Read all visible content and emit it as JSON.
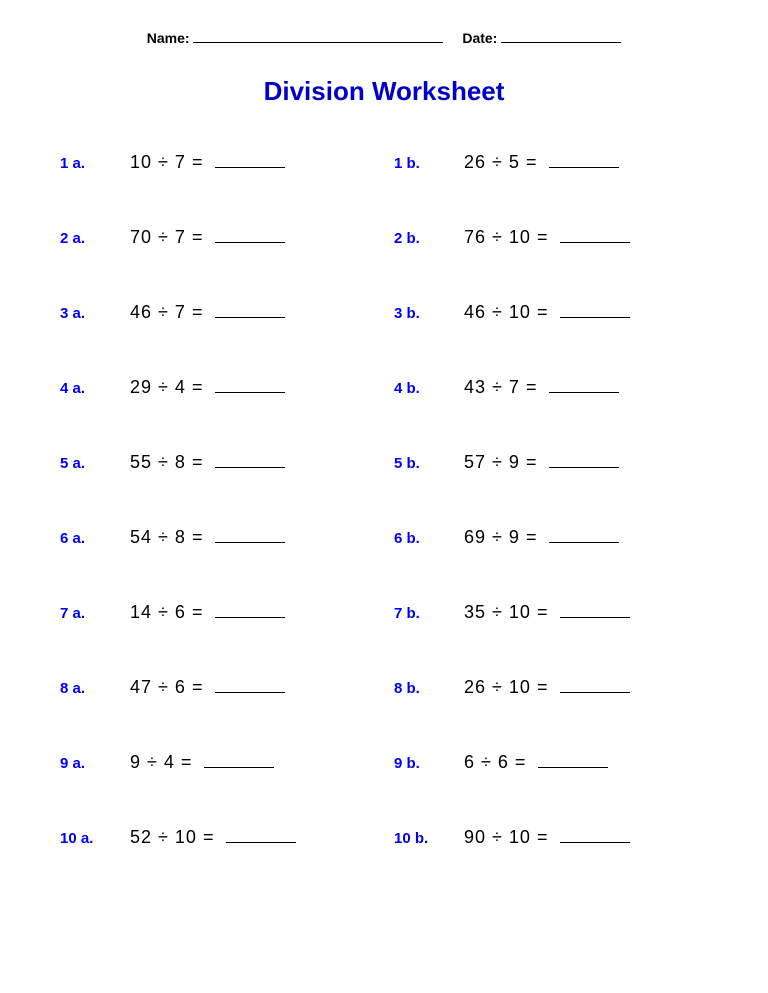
{
  "header": {
    "name_label": "Name:",
    "date_label": "Date:"
  },
  "title": {
    "text": "Division Worksheet",
    "color": "#0000cc"
  },
  "label_color": "#0000ee",
  "problems": [
    {
      "label": "1 a.",
      "dividend": 10,
      "divisor": 7
    },
    {
      "label": "1 b.",
      "dividend": 26,
      "divisor": 5
    },
    {
      "label": "2 a.",
      "dividend": 70,
      "divisor": 7
    },
    {
      "label": "2 b.",
      "dividend": 76,
      "divisor": 10
    },
    {
      "label": "3 a.",
      "dividend": 46,
      "divisor": 7
    },
    {
      "label": "3 b.",
      "dividend": 46,
      "divisor": 10
    },
    {
      "label": "4 a.",
      "dividend": 29,
      "divisor": 4
    },
    {
      "label": "4 b.",
      "dividend": 43,
      "divisor": 7
    },
    {
      "label": "5 a.",
      "dividend": 55,
      "divisor": 8
    },
    {
      "label": "5 b.",
      "dividend": 57,
      "divisor": 9
    },
    {
      "label": "6 a.",
      "dividend": 54,
      "divisor": 8
    },
    {
      "label": "6 b.",
      "dividend": 69,
      "divisor": 9
    },
    {
      "label": "7 a.",
      "dividend": 14,
      "divisor": 6
    },
    {
      "label": "7 b.",
      "dividend": 35,
      "divisor": 10
    },
    {
      "label": "8 a.",
      "dividend": 47,
      "divisor": 6
    },
    {
      "label": "8 b.",
      "dividend": 26,
      "divisor": 10
    },
    {
      "label": "9 a.",
      "dividend": 9,
      "divisor": 4
    },
    {
      "label": "9 b.",
      "dividend": 6,
      "divisor": 6
    },
    {
      "label": "10 a.",
      "dividend": 52,
      "divisor": 10
    },
    {
      "label": "10 b.",
      "dividend": 90,
      "divisor": 10
    }
  ]
}
